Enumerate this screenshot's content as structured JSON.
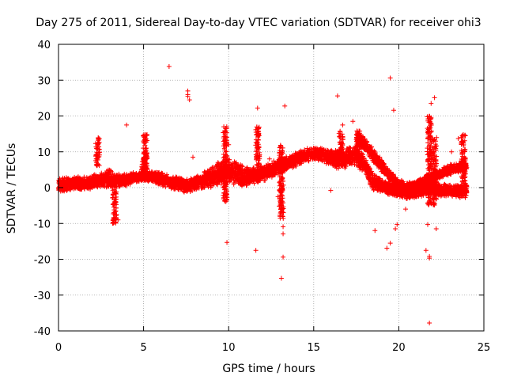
{
  "chart_data": {
    "type": "scatter",
    "title": "Day 275 of 2011, Sidereal Day-to-day VTEC variation (SDTVAR) for receiver ohi3",
    "xlabel": "GPS time / hours",
    "ylabel": "SDTVAR / TECUs",
    "xlim": [
      0,
      25
    ],
    "ylim": [
      -40,
      40
    ],
    "xticks": [
      0,
      5,
      10,
      15,
      20,
      25
    ],
    "yticks": [
      -40,
      -30,
      -20,
      -10,
      0,
      10,
      20,
      30,
      40
    ],
    "grid": true,
    "marker": "+",
    "color": "#ff0000",
    "series": [
      {
        "name": "SDTVAR",
        "bands": [
          {
            "x": [
              0.0,
              0.5,
              1.0,
              1.5,
              2.0,
              2.5,
              3.0,
              3.5,
              4.0,
              4.5,
              5.0,
              5.5,
              6.0,
              6.5,
              7.0,
              7.5,
              8.0,
              8.5,
              9.0,
              9.5,
              10.0,
              10.5,
              11.0,
              11.5,
              12.0,
              12.5,
              13.0,
              13.5,
              14.0,
              14.5,
              15.0,
              15.5,
              16.0,
              16.5,
              17.0,
              17.5,
              18.0,
              18.5,
              19.0,
              19.5,
              20.0,
              20.5,
              21.0,
              21.5,
              22.0,
              22.5,
              23.0,
              23.5,
              24.0
            ],
            "y": [
              0.5,
              1.0,
              1.5,
              1.0,
              1.5,
              2.0,
              2.5,
              2.0,
              2.0,
              3.0,
              3.0,
              3.0,
              2.5,
              1.5,
              1.0,
              0.5,
              1.0,
              2.0,
              3.0,
              4.0,
              5.0,
              4.0,
              3.0,
              3.5,
              4.0,
              5.0,
              6.0,
              7.0,
              8.0,
              9.0,
              9.5,
              9.0,
              8.5,
              8.0,
              8.5,
              9.0,
              6.0,
              2.0,
              0.5,
              -0.5,
              -1.0,
              -1.5,
              -1.0,
              -0.5,
              0.0,
              -0.5,
              -1.0,
              -1.0,
              -1.0
            ],
            "spread": [
              2.5,
              2.0,
              2.0,
              2.0,
              2.0,
              2.5,
              3.0,
              2.0,
              2.0,
              1.5,
              1.5,
              1.5,
              2.0,
              2.0,
              2.0,
              2.0,
              2.0,
              2.5,
              3.0,
              3.5,
              4.0,
              3.5,
              3.0,
              2.5,
              2.5,
              2.5,
              2.5,
              2.0,
              2.0,
              2.0,
              2.0,
              2.0,
              2.5,
              3.0,
              3.0,
              3.0,
              3.0,
              3.0,
              2.0,
              2.0,
              2.0,
              2.0,
              2.0,
              2.0,
              2.0,
              2.0,
              2.0,
              2.0,
              2.0
            ]
          },
          {
            "x": [
              17.5,
              18.0,
              18.5,
              19.0,
              19.5,
              20.0,
              20.5,
              21.0,
              21.5,
              22.0,
              22.5,
              23.0,
              23.5,
              24.0
            ],
            "y": [
              14.0,
              12.0,
              9.0,
              6.0,
              3.0,
              1.0,
              0.0,
              0.5,
              2.0,
              3.0,
              4.0,
              5.0,
              5.5,
              6.0
            ],
            "spread": [
              2.0,
              2.0,
              2.0,
              2.0,
              1.5,
              1.5,
              1.5,
              1.5,
              1.5,
              1.5,
              1.5,
              1.5,
              1.5,
              1.5
            ]
          }
        ],
        "spikes": [
          {
            "x": 2.3,
            "y0": 6,
            "y1": 14
          },
          {
            "x": 3.3,
            "y0": -10,
            "y1": 2
          },
          {
            "x": 5.0,
            "y0": 2,
            "y1": 8
          },
          {
            "x": 5.1,
            "y0": 5,
            "y1": 10
          },
          {
            "x": 5.1,
            "y0": 3,
            "y1": 15
          },
          {
            "x": 9.8,
            "y0": -4,
            "y1": 17
          },
          {
            "x": 11.7,
            "y0": 6,
            "y1": 17
          },
          {
            "x": 13.1,
            "y0": -9,
            "y1": 12
          },
          {
            "x": 16.6,
            "y0": 6,
            "y1": 16
          },
          {
            "x": 17.6,
            "y0": 10,
            "y1": 16
          },
          {
            "x": 21.8,
            "y0": -5,
            "y1": 20
          },
          {
            "x": 22.1,
            "y0": -5,
            "y1": 14
          },
          {
            "x": 23.8,
            "y0": 0,
            "y1": 15
          }
        ],
        "outliers": [
          [
            6.5,
            33.8
          ],
          [
            7.6,
            27.0
          ],
          [
            7.6,
            26.0
          ],
          [
            7.6,
            25.5
          ],
          [
            7.7,
            24.5
          ],
          [
            4.0,
            17.5
          ],
          [
            11.7,
            22.2
          ],
          [
            13.3,
            22.8
          ],
          [
            16.4,
            25.6
          ],
          [
            19.5,
            30.6
          ],
          [
            19.7,
            21.6
          ],
          [
            21.9,
            23.5
          ],
          [
            22.1,
            25.1
          ],
          [
            21.9,
            19.5
          ],
          [
            16.7,
            17.5
          ],
          [
            9.9,
            -15.3
          ],
          [
            11.6,
            -17.5
          ],
          [
            13.2,
            -19.4
          ],
          [
            13.1,
            -25.3
          ],
          [
            13.2,
            -10.9
          ],
          [
            13.2,
            -12.9
          ],
          [
            18.6,
            -12.0
          ],
          [
            19.3,
            -16.9
          ],
          [
            19.5,
            -15.5
          ],
          [
            19.9,
            -10.3
          ],
          [
            21.6,
            -17.5
          ],
          [
            21.8,
            -19.2
          ],
          [
            21.8,
            -19.7
          ],
          [
            21.8,
            -37.8
          ],
          [
            22.2,
            -11.5
          ],
          [
            3.5,
            -9.0
          ],
          [
            12.9,
            -2.5
          ],
          [
            16.0,
            -0.8
          ],
          [
            17.3,
            18.5
          ],
          [
            19.8,
            -11.5
          ],
          [
            21.7,
            -10.3
          ],
          [
            20.4,
            -6.0
          ],
          [
            23.5,
            13.7
          ],
          [
            23.1,
            10.0
          ],
          [
            7.9,
            8.5
          ],
          [
            10.0,
            12.0
          ],
          [
            12.4,
            8.0
          ]
        ]
      }
    ]
  }
}
